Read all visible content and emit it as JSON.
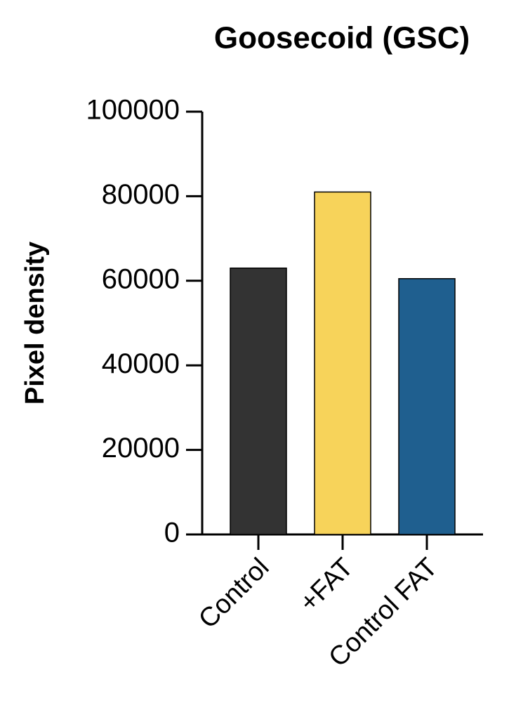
{
  "chart_data": {
    "type": "bar",
    "title": "Goosecoid (GSC)",
    "y_label": "Pixel density",
    "categories": [
      "Control",
      "+FAT",
      "Control FAT"
    ],
    "values": [
      63000,
      81000,
      60500
    ],
    "colors": [
      "#333333",
      "#f7d35a",
      "#1f5f8f"
    ],
    "ylim": [
      0,
      100000
    ],
    "yticks": [
      0,
      20000,
      40000,
      60000,
      80000,
      100000
    ]
  }
}
